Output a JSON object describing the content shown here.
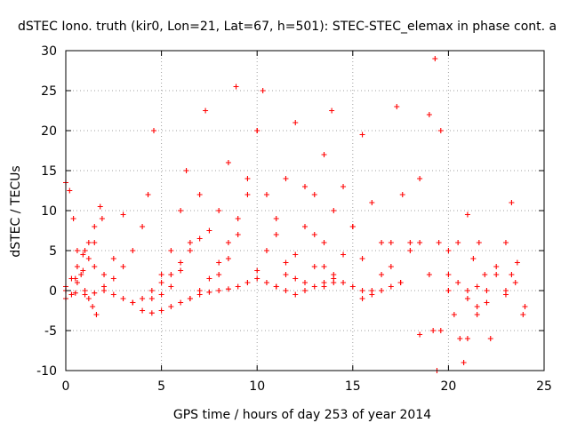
{
  "chart_data": {
    "type": "scatter",
    "title": "dSTEC Iono. truth (kir0, Lon=21, Lat=67, h=501): STEC-STEC_elemax in phase cont. a",
    "xlabel": "GPS time / hours of day 253 of year 2014",
    "ylabel": "dSTEC  / TECUs",
    "xlim": [
      0,
      25
    ],
    "ylim": [
      -10,
      30
    ],
    "xticks": [
      0,
      5,
      10,
      15,
      20,
      25
    ],
    "yticks": [
      -10,
      -5,
      0,
      5,
      10,
      15,
      20,
      25,
      30
    ],
    "grid": true,
    "marker": "+",
    "color": "#ff0000",
    "series": [
      {
        "x": [
          0.0,
          0.2,
          0.4,
          0.6,
          0.8,
          1.0,
          1.2,
          1.4,
          1.6
        ],
        "y": [
          13.5,
          12.5,
          9.0,
          5.0,
          2.0,
          0.0,
          -1.0,
          -2.0,
          -3.0
        ]
      },
      {
        "x": [
          0.0,
          0.3,
          0.6,
          0.9,
          1.2,
          1.5,
          1.8
        ],
        "y": [
          0.5,
          1.5,
          3.0,
          4.5,
          6.0,
          8.0,
          10.5
        ]
      },
      {
        "x": [
          0.0,
          0.3,
          0.6,
          0.9,
          1.2,
          1.5,
          1.9
        ],
        "y": [
          -1.0,
          -0.5,
          1.0,
          2.5,
          4.0,
          6.0,
          9.0
        ]
      },
      {
        "x": [
          0.0,
          0.5,
          1.0,
          1.5,
          2.0,
          2.5,
          3.0
        ],
        "y": [
          0.0,
          1.5,
          5.0,
          3.0,
          2.0,
          4.0,
          9.5
        ]
      },
      {
        "x": [
          0.0,
          0.5,
          1.0,
          1.5,
          2.0,
          2.5,
          3.0,
          3.5,
          4.0,
          4.5,
          5.0,
          5.5,
          6.0,
          6.5,
          7.0,
          7.5,
          8.0,
          8.5,
          9.0,
          9.5,
          10.0,
          10.5,
          11.0,
          11.5,
          12.0,
          12.5,
          13.0,
          13.5,
          14.0,
          14.5,
          15.0,
          15.5,
          16.0,
          16.5,
          17.0,
          17.5
        ],
        "y": [
          0.0,
          -0.3,
          -0.5,
          -0.3,
          0.0,
          -0.5,
          -1.0,
          -1.5,
          -2.5,
          -2.8,
          -2.5,
          -2.0,
          -1.5,
          -1.0,
          -0.5,
          -0.2,
          0.0,
          0.2,
          0.5,
          1.0,
          1.5,
          1.0,
          0.5,
          0.0,
          -0.5,
          0.0,
          0.5,
          1.0,
          1.5,
          1.0,
          0.5,
          0.0,
          -0.5,
          0.0,
          0.5,
          1.0
        ]
      },
      {
        "x": [
          2.0,
          2.5,
          3.0,
          3.5,
          4.0,
          4.3,
          4.6
        ],
        "y": [
          0.5,
          1.5,
          3.0,
          5.0,
          8.0,
          12.0,
          20.0
        ]
      },
      {
        "x": [
          3.5,
          4.0,
          4.5,
          5.0,
          5.5,
          6.0,
          6.3
        ],
        "y": [
          -1.5,
          -1.0,
          0.0,
          2.0,
          5.0,
          10.0,
          15.0
        ]
      },
      {
        "x": [
          4.5,
          5.0,
          5.5,
          6.0,
          6.5,
          7.0,
          7.3
        ],
        "y": [
          -1.0,
          -0.5,
          0.5,
          2.5,
          6.0,
          12.0,
          22.5
        ]
      },
      {
        "x": [
          5.0,
          5.5,
          6.0,
          6.5,
          7.0,
          7.5,
          8.0,
          8.5,
          8.9
        ],
        "y": [
          1.0,
          2.0,
          3.5,
          5.0,
          6.5,
          7.5,
          10.0,
          16.0,
          25.5
        ]
      },
      {
        "x": [
          6.5,
          7.0,
          7.5,
          8.0,
          8.5,
          9.0,
          9.5,
          10.0,
          10.3
        ],
        "y": [
          -1.0,
          0.0,
          1.5,
          3.5,
          6.0,
          9.0,
          14.0,
          20.0,
          25.0
        ]
      },
      {
        "x": [
          8.0,
          8.5,
          9.0,
          9.5,
          10.0,
          10.5,
          11.0,
          11.5,
          12.0
        ],
        "y": [
          2.0,
          4.0,
          7.0,
          12.0,
          20.0,
          12.0,
          7.0,
          3.5,
          1.5
        ]
      },
      {
        "x": [
          9.5,
          10.0,
          10.5,
          11.0,
          11.5,
          12.0,
          12.5,
          13.0,
          13.5,
          14.0
        ],
        "y": [
          1.0,
          2.5,
          5.0,
          9.0,
          14.0,
          21.0,
          13.0,
          7.0,
          3.0,
          1.0
        ]
      },
      {
        "x": [
          11.0,
          11.5,
          12.0,
          12.5,
          13.0,
          13.5,
          13.9
        ],
        "y": [
          0.5,
          2.0,
          4.5,
          8.0,
          12.0,
          17.0,
          22.5
        ]
      },
      {
        "x": [
          12.5,
          13.0,
          13.5,
          14.0,
          14.5,
          15.0,
          15.5
        ],
        "y": [
          1.0,
          3.0,
          6.0,
          10.0,
          13.0,
          8.0,
          4.0
        ]
      },
      {
        "x": [
          13.5,
          14.0,
          14.5,
          15.0,
          15.5,
          16.0,
          16.5,
          17.0
        ],
        "y": [
          0.5,
          2.0,
          4.5,
          8.0,
          19.5,
          11.0,
          6.0,
          3.0
        ]
      },
      {
        "x": [
          15.5,
          16.0,
          16.5,
          17.0,
          17.3,
          17.6,
          18.0,
          18.5
        ],
        "y": [
          -1.0,
          0.0,
          2.0,
          6.0,
          23.0,
          12.0,
          5.0,
          -5.5
        ]
      },
      {
        "x": [
          17.5,
          18.0,
          18.5,
          19.0,
          19.3,
          19.6,
          20.0
        ],
        "y": [
          1.0,
          6.0,
          14.0,
          22.0,
          29.0,
          20.0,
          5.0
        ]
      },
      {
        "x": [
          18.5,
          19.0,
          19.2,
          19.4,
          19.6,
          20.0,
          20.5,
          21.0
        ],
        "y": [
          6.0,
          2.0,
          -5.0,
          -10.0,
          -5.0,
          0.0,
          6.0,
          9.5
        ]
      },
      {
        "x": [
          19.5,
          20.0,
          20.3,
          20.6,
          20.8,
          21.0,
          21.5
        ],
        "y": [
          6.0,
          0.0,
          -3.0,
          -6.0,
          -9.0,
          -6.0,
          -3.0
        ]
      },
      {
        "x": [
          20.0,
          20.5,
          21.0,
          21.5,
          22.0,
          22.5,
          23.0,
          23.5,
          24.0
        ],
        "y": [
          2.0,
          1.0,
          -1.0,
          0.5,
          -1.5,
          2.0,
          -0.5,
          1.0,
          -2.0
        ]
      },
      {
        "x": [
          21.5,
          22.0,
          22.5,
          23.0,
          23.3
        ],
        "y": [
          -2.0,
          0.0,
          3.0,
          6.0,
          11.0
        ]
      },
      {
        "x": [
          21.0,
          21.3,
          21.6,
          21.9,
          22.2
        ],
        "y": [
          0.0,
          4.0,
          6.0,
          2.0,
          -6.0
        ]
      },
      {
        "x": [
          23.0,
          23.3,
          23.6,
          23.9
        ],
        "y": [
          0.0,
          2.0,
          3.5,
          -3.0
        ]
      }
    ]
  }
}
